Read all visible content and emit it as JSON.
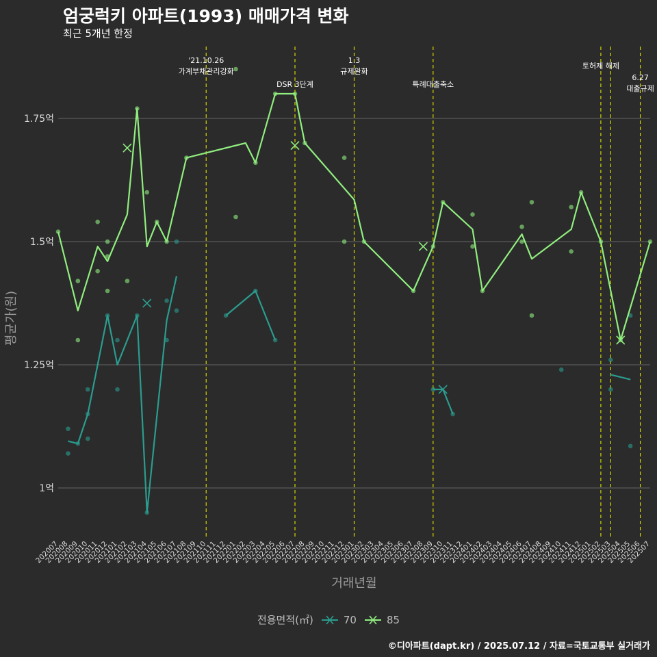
{
  "title": "엄궁럭키 아파트(1993) 매매가격 변화",
  "subtitle": "최근 5개년 한정",
  "caption": "©디아파트(dapt.kr) / 2025.07.12 / 자료=국토교통부 실거래가",
  "colors": {
    "s70": "#2a9d8f",
    "s85": "#90ee7e",
    "vline": "#d4d400",
    "grid": "#5a5a5a",
    "bg": "#2b2b2b"
  },
  "chart_data": {
    "type": "line",
    "xlabel": "거래년월",
    "ylabel": "평균가(원)",
    "ylim": [
      0.9,
      1.9
    ],
    "yticks": [
      {
        "value": 1.0,
        "label": "1억"
      },
      {
        "value": 1.25,
        "label": "1.25억"
      },
      {
        "value": 1.5,
        "label": "1.5억"
      },
      {
        "value": 1.75,
        "label": "1.75억"
      }
    ],
    "x": [
      "202007",
      "202008",
      "202009",
      "202010",
      "202011",
      "202012",
      "202101",
      "202102",
      "202103",
      "202104",
      "202105",
      "202106",
      "202107",
      "202108",
      "202109",
      "202110",
      "202111",
      "202112",
      "202201",
      "202202",
      "202203",
      "202204",
      "202205",
      "202206",
      "202207",
      "202208",
      "202209",
      "202210",
      "202211",
      "202212",
      "202301",
      "202302",
      "202303",
      "202304",
      "202305",
      "202306",
      "202307",
      "202308",
      "202309",
      "202310",
      "202311",
      "202312",
      "202401",
      "202402",
      "202403",
      "202404",
      "202405",
      "202406",
      "202407",
      "202408",
      "202409",
      "202410",
      "202411",
      "202412",
      "202501",
      "202502",
      "202503",
      "202504",
      "202505",
      "202506",
      "202507"
    ],
    "legend_title": "전용면적(㎡)",
    "series": [
      {
        "name": "70",
        "color_key": "s70",
        "line_segments": [
          [
            [
              "202008",
              1.095
            ],
            [
              "202009",
              1.09
            ],
            [
              "202010",
              1.15
            ],
            [
              "202012",
              1.35
            ],
            [
              "202101",
              1.25
            ],
            [
              "202103",
              1.35
            ],
            [
              "202104",
              0.95
            ],
            [
              "202106",
              1.34
            ],
            [
              "202107",
              1.43
            ]
          ],
          [
            [
              "202112",
              1.35
            ],
            [
              "202203",
              1.4
            ],
            [
              "202205",
              1.3
            ]
          ],
          [
            [
              "202309",
              1.2
            ],
            [
              "202310",
              1.2
            ],
            [
              "202311",
              1.15
            ]
          ],
          [
            [
              "202503",
              1.23
            ],
            [
              "202505",
              1.22
            ]
          ]
        ],
        "points": [
          [
            "202008",
            1.12
          ],
          [
            "202008",
            1.07
          ],
          [
            "202009",
            1.09
          ],
          [
            "202010",
            1.2
          ],
          [
            "202010",
            1.15
          ],
          [
            "202010",
            1.1
          ],
          [
            "202012",
            1.35
          ],
          [
            "202101",
            1.3
          ],
          [
            "202101",
            1.2
          ],
          [
            "202103",
            1.35
          ],
          [
            "202104",
            0.95
          ],
          [
            "202106",
            1.38
          ],
          [
            "202106",
            1.3
          ],
          [
            "202107",
            1.36
          ],
          [
            "202107",
            1.5
          ],
          [
            "202112",
            1.35
          ],
          [
            "202203",
            1.4
          ],
          [
            "202205",
            1.3
          ],
          [
            "202309",
            1.2
          ],
          [
            "202311",
            1.15
          ],
          [
            "202410",
            1.24
          ],
          [
            "202503",
            1.26
          ],
          [
            "202503",
            1.2
          ],
          [
            "202505",
            1.35
          ],
          [
            "202505",
            1.085
          ]
        ],
        "x_markers": [
          [
            "202104",
            1.375
          ],
          [
            "202310",
            1.2
          ]
        ]
      },
      {
        "name": "85",
        "color_key": "s85",
        "line_segments": [
          [
            [
              "202007",
              1.52
            ],
            [
              "202009",
              1.36
            ],
            [
              "202011",
              1.49
            ],
            [
              "202012",
              1.46
            ],
            [
              "202102",
              1.555
            ],
            [
              "202103",
              1.77
            ],
            [
              "202104",
              1.49
            ],
            [
              "202105",
              1.54
            ],
            [
              "202106",
              1.5
            ],
            [
              "202108",
              1.67
            ],
            [
              "202202",
              1.7
            ],
            [
              "202203",
              1.66
            ],
            [
              "202205",
              1.8
            ],
            [
              "202207",
              1.8
            ],
            [
              "202208",
              1.7
            ],
            [
              "202301",
              1.585
            ],
            [
              "202302",
              1.5
            ],
            [
              "202307",
              1.4
            ],
            [
              "202309",
              1.49
            ],
            [
              "202310",
              1.58
            ],
            [
              "202401",
              1.525
            ],
            [
              "202402",
              1.4
            ],
            [
              "202406",
              1.515
            ],
            [
              "202407",
              1.465
            ],
            [
              "202411",
              1.525
            ],
            [
              "202412",
              1.6
            ],
            [
              "202502",
              1.5
            ],
            [
              "202504",
              1.3
            ],
            [
              "202507",
              1.5
            ]
          ]
        ],
        "points": [
          [
            "202007",
            1.52
          ],
          [
            "202009",
            1.42
          ],
          [
            "202009",
            1.3
          ],
          [
            "202011",
            1.54
          ],
          [
            "202011",
            1.44
          ],
          [
            "202012",
            1.5
          ],
          [
            "202012",
            1.47
          ],
          [
            "202012",
            1.4
          ],
          [
            "202102",
            1.42
          ],
          [
            "202103",
            1.77
          ],
          [
            "202104",
            1.6
          ],
          [
            "202105",
            1.54
          ],
          [
            "202106",
            1.5
          ],
          [
            "202108",
            1.67
          ],
          [
            "202201",
            1.85
          ],
          [
            "202201",
            1.55
          ],
          [
            "202203",
            1.66
          ],
          [
            "202205",
            1.8
          ],
          [
            "202207",
            1.8
          ],
          [
            "202208",
            1.7
          ],
          [
            "202212",
            1.67
          ],
          [
            "202212",
            1.5
          ],
          [
            "202302",
            1.5
          ],
          [
            "202307",
            1.4
          ],
          [
            "202309",
            1.49
          ],
          [
            "202310",
            1.58
          ],
          [
            "202401",
            1.555
          ],
          [
            "202401",
            1.49
          ],
          [
            "202402",
            1.4
          ],
          [
            "202406",
            1.53
          ],
          [
            "202406",
            1.5
          ],
          [
            "202407",
            1.58
          ],
          [
            "202407",
            1.35
          ],
          [
            "202411",
            1.57
          ],
          [
            "202411",
            1.48
          ],
          [
            "202412",
            1.6
          ],
          [
            "202502",
            1.5
          ],
          [
            "202504",
            1.3
          ],
          [
            "202507",
            1.5
          ]
        ],
        "x_markers": [
          [
            "202102",
            1.69
          ],
          [
            "202207",
            1.695
          ],
          [
            "202308",
            1.49
          ],
          [
            "202504",
            1.3
          ]
        ]
      }
    ],
    "annotations": [
      {
        "x": "202110",
        "label_lines": [
          "'21.10.26",
          "가계부채관리강화"
        ],
        "row": 0
      },
      {
        "x": "202207",
        "label_lines": [
          "DSR 3단계"
        ],
        "row": 2
      },
      {
        "x": "202301",
        "label_lines": [
          "1.3",
          "규제완화"
        ],
        "row": 0
      },
      {
        "x": "202309",
        "label_lines": [
          "특례대출축소"
        ],
        "row": 2
      },
      {
        "x": "202502",
        "label_lines": [
          "토허제 해제"
        ],
        "row": 1
      },
      {
        "x": "202503",
        "label_lines": [],
        "row": 1
      },
      {
        "x": "202506",
        "label_lines": [
          "6.27",
          "대출규제"
        ],
        "row": 3
      }
    ]
  }
}
